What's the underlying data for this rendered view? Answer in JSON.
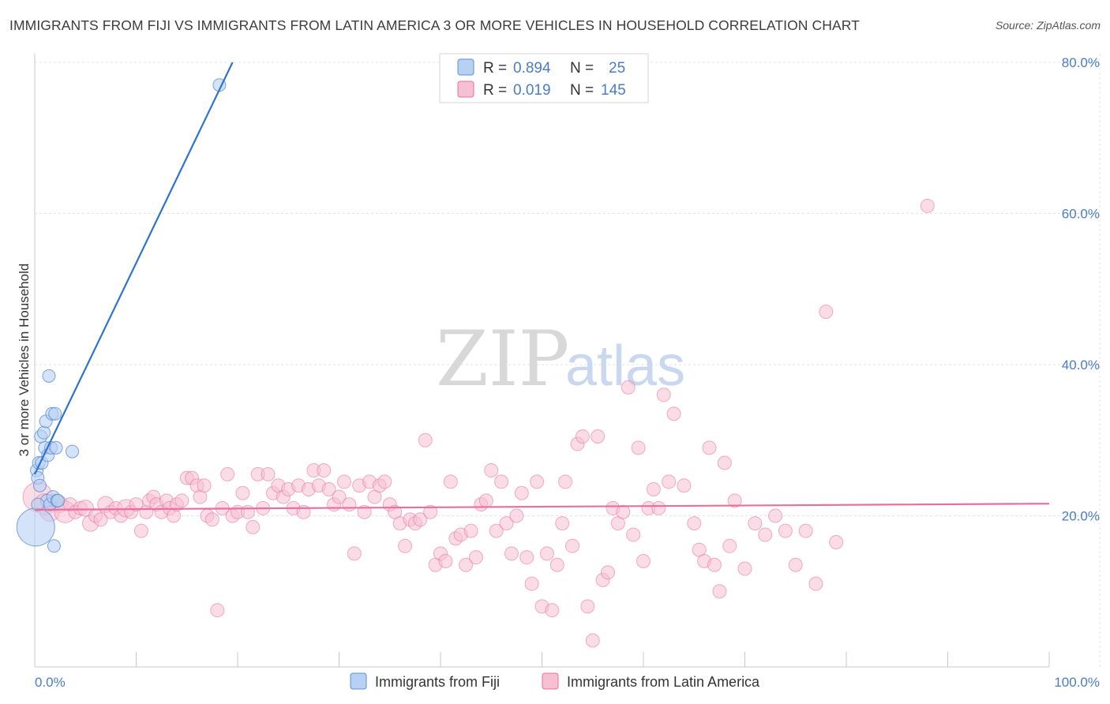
{
  "title": "IMMIGRANTS FROM FIJI VS IMMIGRANTS FROM LATIN AMERICA 3 OR MORE VEHICLES IN HOUSEHOLD CORRELATION CHART",
  "source": "Source: ZipAtlas.com",
  "watermark": {
    "zip": "ZIP",
    "atlas": "atlas"
  },
  "colors": {
    "fiji": "#5b8fd6",
    "fiji_fill": "#b8d0f2",
    "latam": "#e86f9b",
    "latam_fill": "#f6bfd2",
    "axis_text": "#4a7cc7"
  },
  "legend": {
    "r_label": "R =",
    "n_label": "N =",
    "fiji": {
      "r": "0.894",
      "n": "25"
    },
    "latam": {
      "r": "0.019",
      "n": "145"
    }
  },
  "chart_data": {
    "type": "scatter",
    "title": "IMMIGRANTS FROM FIJI VS IMMIGRANTS FROM LATIN AMERICA 3 OR MORE VEHICLES IN HOUSEHOLD CORRELATION CHART",
    "xlabel": "",
    "ylabel": "3 or more Vehicles in Household",
    "xlim": [
      0,
      100
    ],
    "ylim": [
      0,
      80
    ],
    "x_tick_labels": [
      "0.0%",
      "100.0%"
    ],
    "y_ticks": [
      20,
      40,
      60,
      80
    ],
    "y_tick_labels": [
      "20.0%",
      "40.0%",
      "60.0%",
      "80.0%"
    ],
    "grid": true,
    "legend_position": "top-center",
    "series": [
      {
        "name": "Immigrants from Fiji",
        "r": 0.894,
        "n": 25,
        "trend": {
          "x0": 0,
          "y0": 25.5,
          "x1": 19.5,
          "y1": 80
        },
        "points": [
          [
            0.1,
            18.5,
            3
          ],
          [
            0.2,
            26.0,
            1
          ],
          [
            0.3,
            25.0,
            1
          ],
          [
            0.4,
            27.0,
            1
          ],
          [
            0.5,
            24.0,
            1
          ],
          [
            0.6,
            30.5,
            1
          ],
          [
            0.7,
            27.0,
            1
          ],
          [
            0.9,
            31.0,
            1
          ],
          [
            1.0,
            29.0,
            1
          ],
          [
            1.1,
            32.5,
            1
          ],
          [
            1.2,
            22.0,
            1
          ],
          [
            1.3,
            28.0,
            1
          ],
          [
            1.4,
            38.5,
            1
          ],
          [
            1.5,
            21.5,
            1
          ],
          [
            1.6,
            29.0,
            1
          ],
          [
            1.7,
            33.5,
            1
          ],
          [
            1.8,
            22.5,
            1
          ],
          [
            1.9,
            16.0,
            1
          ],
          [
            2.0,
            33.5,
            1
          ],
          [
            2.1,
            29.0,
            1
          ],
          [
            2.2,
            22.0,
            1
          ],
          [
            2.3,
            22.0,
            1
          ],
          [
            3.7,
            28.5,
            1
          ],
          [
            18.2,
            77.0,
            1
          ],
          [
            0.3,
            21.5,
            1
          ]
        ]
      },
      {
        "name": "Immigrants from Latin America",
        "r": 0.019,
        "n": 145,
        "trend": {
          "x0": 0,
          "y0": 20.8,
          "x1": 100,
          "y1": 21.6
        },
        "points": [
          [
            0.3,
            22.5,
            2.2
          ],
          [
            1.0,
            21.5,
            1.6
          ],
          [
            1.5,
            20.5,
            1.4
          ],
          [
            2.0,
            22.0,
            1
          ],
          [
            2.5,
            21.5,
            1.2
          ],
          [
            3.0,
            20.5,
            1.6
          ],
          [
            3.5,
            21.5,
            1
          ],
          [
            4.0,
            20.5,
            1
          ],
          [
            4.5,
            21.0,
            1
          ],
          [
            5.0,
            21.0,
            1.2
          ],
          [
            5.5,
            19.0,
            1.2
          ],
          [
            6.0,
            20.0,
            1
          ],
          [
            6.5,
            19.5,
            1
          ],
          [
            7.0,
            21.5,
            1.2
          ],
          [
            7.5,
            20.5,
            1
          ],
          [
            8.0,
            21.0,
            1
          ],
          [
            8.5,
            20.0,
            1
          ],
          [
            9.0,
            21.0,
            1.3
          ],
          [
            9.5,
            20.5,
            1
          ],
          [
            10.0,
            21.5,
            1
          ],
          [
            10.5,
            18.0,
            1
          ],
          [
            11.0,
            20.5,
            1
          ],
          [
            11.3,
            22.0,
            1
          ],
          [
            11.7,
            22.5,
            1
          ],
          [
            12.0,
            21.5,
            1
          ],
          [
            12.5,
            20.5,
            1
          ],
          [
            13.0,
            22.0,
            1
          ],
          [
            13.3,
            21.0,
            1
          ],
          [
            13.7,
            20.0,
            1
          ],
          [
            14.0,
            21.5,
            1
          ],
          [
            14.5,
            22.0,
            1
          ],
          [
            15.0,
            25.0,
            1
          ],
          [
            15.5,
            25.0,
            1
          ],
          [
            16.0,
            24.0,
            1
          ],
          [
            16.3,
            22.5,
            1
          ],
          [
            16.7,
            24.0,
            1
          ],
          [
            17.0,
            20.0,
            1
          ],
          [
            17.5,
            19.5,
            1
          ],
          [
            18.0,
            7.5,
            1
          ],
          [
            18.5,
            21.0,
            1
          ],
          [
            19.0,
            25.5,
            1
          ],
          [
            19.5,
            20.0,
            1
          ],
          [
            20.0,
            20.5,
            1
          ],
          [
            20.5,
            23.0,
            1
          ],
          [
            21.0,
            20.5,
            1
          ],
          [
            21.5,
            18.5,
            1
          ],
          [
            22.0,
            25.5,
            1
          ],
          [
            22.5,
            21.0,
            1
          ],
          [
            23.0,
            25.5,
            1
          ],
          [
            23.5,
            23.0,
            1
          ],
          [
            24.0,
            24.0,
            1
          ],
          [
            24.5,
            22.5,
            1
          ],
          [
            25.0,
            23.5,
            1
          ],
          [
            25.5,
            21.0,
            1
          ],
          [
            26.0,
            24.0,
            1
          ],
          [
            26.5,
            20.5,
            1
          ],
          [
            27.0,
            23.5,
            1
          ],
          [
            27.5,
            26.0,
            1
          ],
          [
            28.0,
            24.0,
            1
          ],
          [
            28.5,
            26.0,
            1
          ],
          [
            29.0,
            23.5,
            1
          ],
          [
            29.5,
            21.5,
            1
          ],
          [
            30.0,
            22.5,
            1
          ],
          [
            30.5,
            24.5,
            1
          ],
          [
            31.0,
            21.5,
            1
          ],
          [
            31.5,
            15.0,
            1
          ],
          [
            32.0,
            24.0,
            1
          ],
          [
            32.5,
            20.5,
            1
          ],
          [
            33.0,
            24.5,
            1
          ],
          [
            33.5,
            22.5,
            1
          ],
          [
            34.0,
            24.0,
            1
          ],
          [
            34.5,
            24.5,
            1
          ],
          [
            35.0,
            21.5,
            1
          ],
          [
            35.5,
            20.5,
            1
          ],
          [
            36.0,
            19.0,
            1
          ],
          [
            36.5,
            16.0,
            1
          ],
          [
            37.0,
            19.5,
            1
          ],
          [
            37.5,
            19.0,
            1
          ],
          [
            38.0,
            19.5,
            1
          ],
          [
            38.5,
            30.0,
            1
          ],
          [
            39.0,
            20.5,
            1
          ],
          [
            39.5,
            13.5,
            1
          ],
          [
            40.0,
            15.0,
            1
          ],
          [
            40.5,
            14.0,
            1
          ],
          [
            41.0,
            24.5,
            1
          ],
          [
            41.5,
            17.0,
            1
          ],
          [
            42.0,
            17.5,
            1
          ],
          [
            42.5,
            13.5,
            1
          ],
          [
            43.0,
            18.0,
            1
          ],
          [
            43.5,
            14.5,
            1
          ],
          [
            44.0,
            21.5,
            1
          ],
          [
            44.5,
            22.0,
            1
          ],
          [
            45.0,
            26.0,
            1
          ],
          [
            45.5,
            18.0,
            1
          ],
          [
            46.0,
            24.5,
            1
          ],
          [
            46.5,
            19.0,
            1
          ],
          [
            47.0,
            15.0,
            1
          ],
          [
            47.5,
            20.0,
            1
          ],
          [
            48.0,
            23.0,
            1
          ],
          [
            48.5,
            14.5,
            1
          ],
          [
            49.0,
            11.0,
            1
          ],
          [
            49.5,
            24.5,
            1
          ],
          [
            50.0,
            8.0,
            1
          ],
          [
            50.5,
            15.0,
            1
          ],
          [
            51.0,
            7.5,
            1
          ],
          [
            51.5,
            13.5,
            1
          ],
          [
            52.0,
            19.0,
            1
          ],
          [
            52.3,
            24.5,
            1
          ],
          [
            53.0,
            16.0,
            1
          ],
          [
            53.5,
            29.5,
            1
          ],
          [
            54.0,
            30.5,
            1
          ],
          [
            54.5,
            8.0,
            1
          ],
          [
            55.0,
            3.5,
            1
          ],
          [
            55.5,
            30.5,
            1
          ],
          [
            56.0,
            11.5,
            1
          ],
          [
            56.5,
            12.5,
            1
          ],
          [
            57.0,
            21.0,
            1
          ],
          [
            57.5,
            19.0,
            1
          ],
          [
            58.0,
            20.5,
            1
          ],
          [
            58.5,
            37.0,
            1
          ],
          [
            59.0,
            17.5,
            1
          ],
          [
            59.5,
            29.0,
            1
          ],
          [
            60.0,
            14.0,
            1
          ],
          [
            60.5,
            21.0,
            1
          ],
          [
            61.0,
            23.5,
            1
          ],
          [
            61.5,
            21.0,
            1
          ],
          [
            62.0,
            36.0,
            1
          ],
          [
            62.5,
            24.5,
            1
          ],
          [
            63.0,
            33.5,
            1
          ],
          [
            64.0,
            24.0,
            1
          ],
          [
            65.0,
            19.0,
            1
          ],
          [
            65.5,
            15.5,
            1
          ],
          [
            66.0,
            14.0,
            1
          ],
          [
            66.5,
            29.0,
            1
          ],
          [
            67.0,
            13.5,
            1
          ],
          [
            67.5,
            10.0,
            1
          ],
          [
            68.0,
            27.0,
            1
          ],
          [
            68.5,
            16.0,
            1
          ],
          [
            69.0,
            22.0,
            1
          ],
          [
            70.0,
            13.0,
            1
          ],
          [
            71.0,
            19.0,
            1
          ],
          [
            72.0,
            17.5,
            1
          ],
          [
            73.0,
            20.0,
            1
          ],
          [
            74.0,
            18.0,
            1
          ],
          [
            75.0,
            13.5,
            1
          ],
          [
            76.0,
            18.0,
            1
          ],
          [
            77.0,
            11.0,
            1
          ],
          [
            78.0,
            47.0,
            1
          ],
          [
            79.0,
            16.5,
            1
          ],
          [
            88.0,
            61.0,
            1
          ]
        ]
      }
    ]
  },
  "bottom_legend": [
    "Immigrants from Fiji",
    "Immigrants from Latin America"
  ]
}
